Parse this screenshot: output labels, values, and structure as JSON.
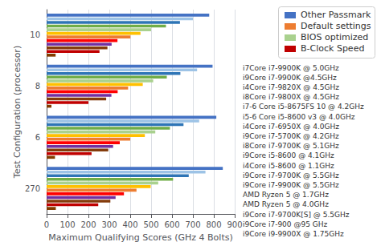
{
  "chart_data": {
    "type": "bar",
    "orientation": "horizontal",
    "xlabel": "Maximum Qualifying Scores (GHz 4 Bolts)",
    "ylabel": "Test Configuration (processor)",
    "categories": [
      "10",
      "8",
      "6",
      "270"
    ],
    "series": [
      {
        "color": "#4472C4",
        "values": [
          778,
          794,
          812,
          843
        ]
      },
      {
        "color": "#9DC3E6",
        "values": [
          700,
          720,
          730,
          760
        ]
      },
      {
        "color": "#2E75B6",
        "values": [
          638,
          640,
          655,
          680
        ]
      },
      {
        "color": "#70AD47",
        "values": [
          571,
          575,
          590,
          605
        ]
      },
      {
        "color": "#A9D18E",
        "values": [
          500,
          510,
          520,
          534
        ]
      },
      {
        "color": "#FFC000",
        "values": [
          449,
          460,
          470,
          498
        ]
      },
      {
        "color": "#ED7D31",
        "values": [
          401,
          390,
          400,
          430
        ]
      },
      {
        "color": "#FF0000",
        "values": [
          339,
          340,
          350,
          370
        ]
      },
      {
        "color": "#7030A0",
        "values": [
          311,
          310,
          318,
          330
        ]
      },
      {
        "color": "#843C0C",
        "values": [
          291,
          285,
          295,
          305
        ]
      },
      {
        "color": "#C00000",
        "values": [
          253,
          200,
          215,
          247
        ]
      },
      {
        "color": "#833C00",
        "values": [
          43,
          23,
          40,
          44
        ]
      }
    ],
    "xlim": [
      0,
      900
    ],
    "xticks": [
      0,
      100,
      200,
      300,
      400,
      500,
      600,
      700,
      800,
      900
    ],
    "grid": true,
    "legend": "upper right",
    "legend_entries": [
      {
        "name": "Other Passmark",
        "color": "#4472C4"
      },
      {
        "name": "Default settings",
        "color": "#ED7D31"
      },
      {
        "name": "BIOS optimized",
        "color": "#A9D18E"
      },
      {
        "name": "B-Clock Speed",
        "color": "#C00000"
      }
    ],
    "annotations": [
      "i7Core i7-9900K @ 5.0GHz",
      "i9Core i7-9900K @4.5GHz",
      "i4Core i7-9820X @ 4.5GHz",
      "i8Core i7-9800X @ 4.5GHz",
      "i7-6 Core i5-8675FS 10 @ 4.2GHz",
      "i5-6 Core i5-8600 v3 @ 4.0GHz",
      "i4Core i7-6950X @ 4.0GHz",
      "i9Core i7-5700K @ 4.2GHz",
      "i8Core i7-9700K @ 5.1GHz",
      "i9Core i5-8600 @ 4.1GHz",
      "i4Core i5-8600 @ 1.1GHz",
      "i9Core i7-9700K @ 5.5GHz",
      "i9Core i7-9900K @ 5.5GHz",
      "AMD Ryzen 5 @ 1.7GHz",
      "AMD Ryzen 5 @ 4.0GHz",
      "i9Core i7-9700K[S] @ 5.5GHz",
      "i9Core i7-900 @95 GHz",
      "i9Core i9-9900X @ 1.75GHz"
    ]
  }
}
